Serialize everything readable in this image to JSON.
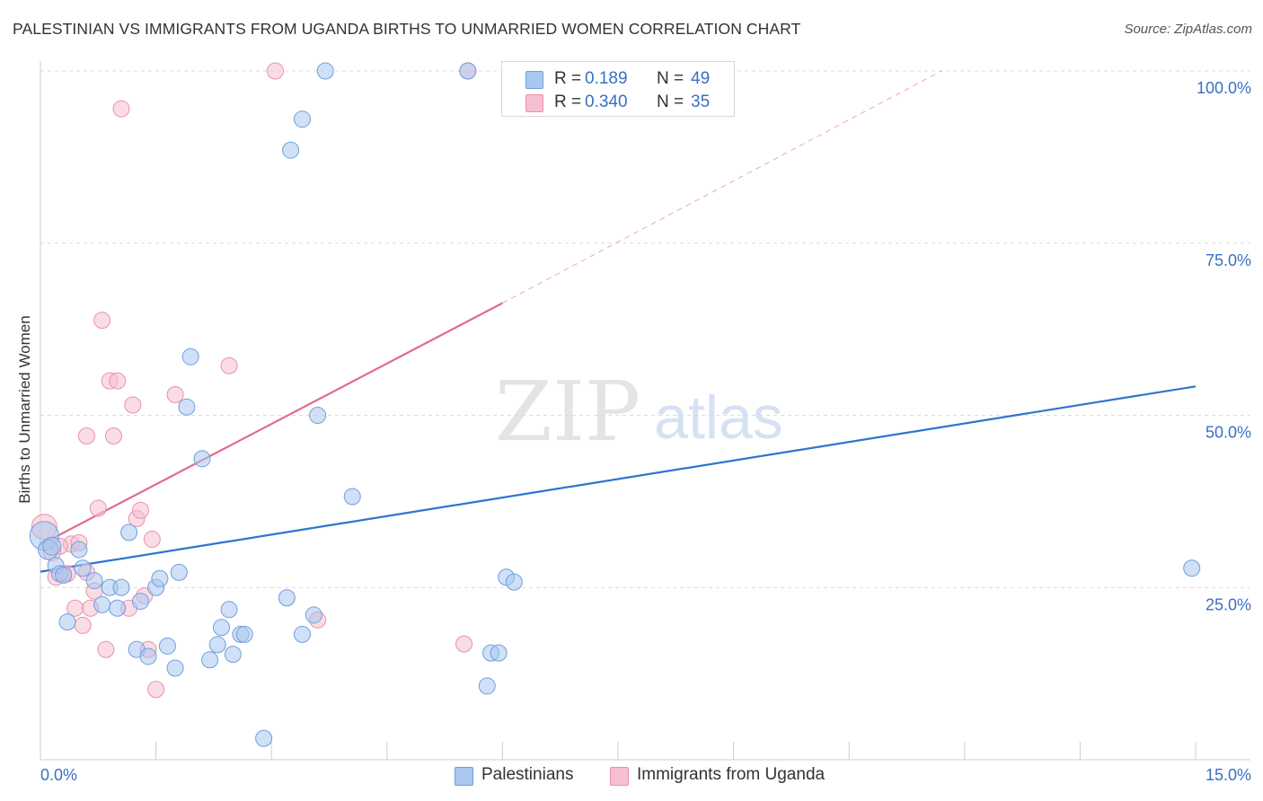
{
  "title": "PALESTINIAN VS IMMIGRANTS FROM UGANDA BIRTHS TO UNMARRIED WOMEN CORRELATION CHART",
  "source": "Source: ZipAtlas.com",
  "watermark": {
    "zip": "ZIP",
    "atlas": "atlas"
  },
  "legend_top": {
    "rows": [
      {
        "r_label": "R =",
        "r_value": "0.189",
        "n_label": "N =",
        "n_value": "49",
        "color": "#aac7ef"
      },
      {
        "r_label": "R =",
        "r_value": "0.340",
        "n_label": "N =",
        "n_value": "35",
        "color": "#f6bfd0"
      }
    ]
  },
  "legend_bottom": [
    {
      "label": "Palestinians",
      "color": "#aac7ef"
    },
    {
      "label": "Immigrants from Uganda",
      "color": "#f6bfd0"
    }
  ],
  "chart_data": {
    "type": "scatter",
    "title": "PALESTINIAN VS IMMIGRANTS FROM UGANDA BIRTHS TO UNMARRIED WOMEN CORRELATION CHART",
    "xlabel": "",
    "ylabel": "Births to Unmarried Women",
    "xlim": [
      0,
      15
    ],
    "ylim": [
      0,
      100
    ],
    "x_tick_labels": [
      "0.0%",
      "15.0%"
    ],
    "y_tick_labels": [
      "25.0%",
      "50.0%",
      "75.0%",
      "100.0%"
    ],
    "y_ticks": [
      25,
      50,
      75,
      100
    ],
    "x_minor_ticks": [
      1.5,
      3.0,
      4.5,
      6.0,
      7.5,
      9.0,
      10.5,
      12.0,
      13.5,
      15.0
    ],
    "grid": true,
    "series": [
      {
        "name": "Palestinians",
        "color": "#aac7ef",
        "stroke": "#6f9fdc",
        "line_color": "#2f74d0",
        "trend": {
          "x0": 0,
          "y0": 27.3,
          "x1": 15,
          "y1": 54.2,
          "dashed_to": null
        },
        "points": [
          [
            0.05,
            32.5,
            16
          ],
          [
            0.1,
            30.5,
            11
          ],
          [
            0.15,
            31.0,
            10
          ],
          [
            0.2,
            28.2,
            9
          ],
          [
            0.25,
            27.0,
            9
          ],
          [
            0.3,
            26.8,
            9
          ],
          [
            0.35,
            20.0,
            9
          ],
          [
            0.5,
            30.5,
            9
          ],
          [
            0.55,
            27.8,
            9
          ],
          [
            0.7,
            26.0,
            9
          ],
          [
            0.8,
            22.5,
            9
          ],
          [
            0.9,
            25.0,
            9
          ],
          [
            1.0,
            22.0,
            9
          ],
          [
            1.05,
            25.0,
            9
          ],
          [
            1.15,
            33.0,
            9
          ],
          [
            1.25,
            16.0,
            9
          ],
          [
            1.3,
            23.0,
            9
          ],
          [
            1.4,
            15.0,
            9
          ],
          [
            1.5,
            25.0,
            9
          ],
          [
            1.55,
            26.3,
            9
          ],
          [
            1.65,
            16.5,
            9
          ],
          [
            1.75,
            13.3,
            9
          ],
          [
            1.8,
            27.2,
            9
          ],
          [
            1.9,
            51.2,
            9
          ],
          [
            1.95,
            58.5,
            9
          ],
          [
            2.1,
            43.7,
            9
          ],
          [
            2.2,
            14.5,
            9
          ],
          [
            2.3,
            16.7,
            9
          ],
          [
            2.35,
            19.2,
            9
          ],
          [
            2.45,
            21.8,
            9
          ],
          [
            2.5,
            15.3,
            9
          ],
          [
            2.6,
            18.2,
            9
          ],
          [
            2.65,
            18.2,
            9
          ],
          [
            2.9,
            3.1,
            9
          ],
          [
            3.2,
            23.5,
            9
          ],
          [
            3.25,
            88.5,
            9
          ],
          [
            3.4,
            93.0,
            9
          ],
          [
            3.4,
            18.2,
            9
          ],
          [
            3.55,
            21.0,
            9
          ],
          [
            3.6,
            50.0,
            9
          ],
          [
            3.7,
            100.0,
            9
          ],
          [
            4.05,
            38.2,
            9
          ],
          [
            5.55,
            100.0,
            9
          ],
          [
            5.8,
            10.7,
            9
          ],
          [
            5.85,
            15.5,
            9
          ],
          [
            5.95,
            15.5,
            9
          ],
          [
            6.05,
            26.5,
            9
          ],
          [
            6.15,
            25.8,
            9
          ],
          [
            14.95,
            27.8,
            9
          ]
        ]
      },
      {
        "name": "Immigrants from Uganda",
        "color": "#f6bfd0",
        "stroke": "#e891ae",
        "line_color": "#e06a93",
        "trend": {
          "x0": 0,
          "y0": 31.2,
          "x1": 6.0,
          "y1": 66.3,
          "dashed_to": {
            "x": 11.7,
            "y": 100
          }
        },
        "points": [
          [
            0.05,
            33.8,
            14
          ],
          [
            0.15,
            30.2,
            10
          ],
          [
            0.2,
            26.5,
            9
          ],
          [
            0.3,
            27.0,
            9
          ],
          [
            0.35,
            27.0,
            9
          ],
          [
            0.4,
            31.3,
            9
          ],
          [
            0.45,
            22.0,
            9
          ],
          [
            0.5,
            31.5,
            9
          ],
          [
            0.55,
            19.5,
            9
          ],
          [
            0.6,
            47.0,
            9
          ],
          [
            0.65,
            22.0,
            9
          ],
          [
            0.7,
            24.5,
            9
          ],
          [
            0.75,
            36.5,
            9
          ],
          [
            0.8,
            63.8,
            9
          ],
          [
            0.85,
            16.0,
            9
          ],
          [
            0.9,
            55.0,
            9
          ],
          [
            0.95,
            47.0,
            9
          ],
          [
            1.0,
            55.0,
            9
          ],
          [
            1.05,
            94.5,
            9
          ],
          [
            1.15,
            22.0,
            9
          ],
          [
            1.2,
            51.5,
            9
          ],
          [
            1.25,
            35.0,
            9
          ],
          [
            1.3,
            36.2,
            9
          ],
          [
            1.35,
            23.8,
            9
          ],
          [
            1.4,
            16.0,
            9
          ],
          [
            1.45,
            32.0,
            9
          ],
          [
            1.5,
            10.2,
            9
          ],
          [
            1.75,
            53.0,
            9
          ],
          [
            2.45,
            57.2,
            9
          ],
          [
            3.05,
            100.0,
            9
          ],
          [
            3.6,
            20.3,
            9
          ],
          [
            5.5,
            16.8,
            9
          ],
          [
            5.55,
            100.0,
            9
          ],
          [
            0.25,
            31.0,
            9
          ],
          [
            0.6,
            27.2,
            9
          ]
        ]
      }
    ]
  }
}
